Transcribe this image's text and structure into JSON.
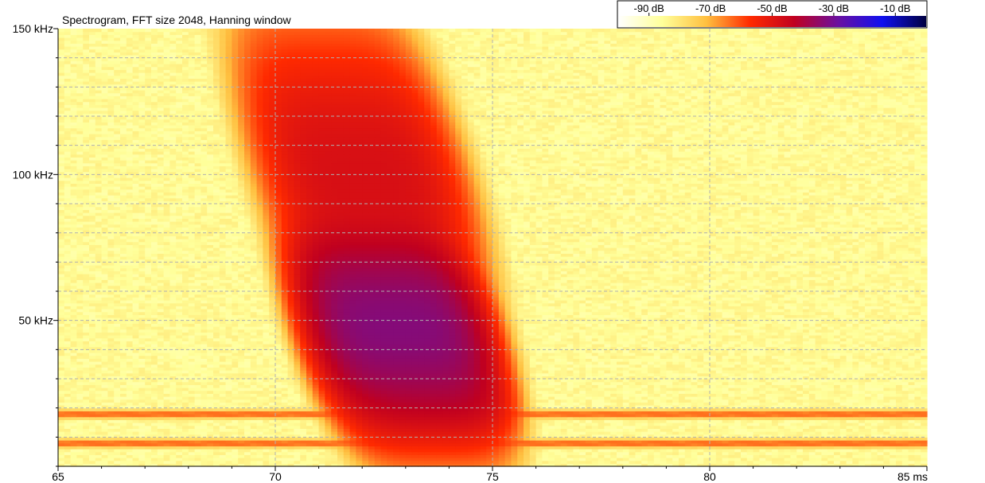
{
  "chart_data": {
    "type": "heatmap",
    "title": "Spectrogram, FFT size 2048, Hanning window",
    "x_axis": {
      "range": [
        65,
        85
      ],
      "ticks": [
        65,
        70,
        75,
        80,
        85
      ],
      "tick_labels": [
        "65",
        "70",
        "75",
        "80",
        "85 ms"
      ],
      "minor_step": 1
    },
    "y_axis": {
      "range": [
        0,
        150
      ],
      "ticks": [
        50,
        100,
        150
      ],
      "tick_labels": [
        "50 kHz",
        "100 kHz",
        "150 kHz"
      ],
      "minor_step": 10
    },
    "colorbar": {
      "range_db": [
        -100,
        0
      ],
      "ticks_db": [
        -90,
        -70,
        -50,
        -30,
        -10
      ],
      "tick_labels": [
        "-90 dB",
        "-70 dB",
        "-50 dB",
        "-30 dB",
        "-10 dB"
      ],
      "colors": [
        "#ffffff",
        "#ffff9a",
        "#ffc040",
        "#ff2a00",
        "#c00020",
        "#6a10a0",
        "#1010f0",
        "#000040"
      ],
      "placement": "top-right"
    },
    "grid": true,
    "background_db": -85,
    "features": [
      {
        "name": "main sweep (upper)",
        "t_center_ms": 72.0,
        "f_center_khz": 100,
        "t_width_ms": 1.7,
        "f_width_khz": 28,
        "peak_db": -48
      },
      {
        "name": "main sweep (lower)",
        "t_center_ms": 72.8,
        "f_center_khz": 48,
        "t_width_ms": 1.5,
        "f_width_khz": 18,
        "peak_db": -33
      },
      {
        "name": "tail",
        "t_center_ms": 73.8,
        "f_center_khz": 25,
        "t_width_ms": 1.2,
        "f_width_khz": 8,
        "peak_db": -48
      },
      {
        "name": "low-frequency band",
        "f_center_khz": 18,
        "t_range_ms": [
          65,
          85
        ],
        "peak_db": -62
      },
      {
        "name": "low-frequency band",
        "f_center_khz": 8,
        "t_range_ms": [
          65,
          85
        ],
        "peak_db": -62
      }
    ]
  }
}
